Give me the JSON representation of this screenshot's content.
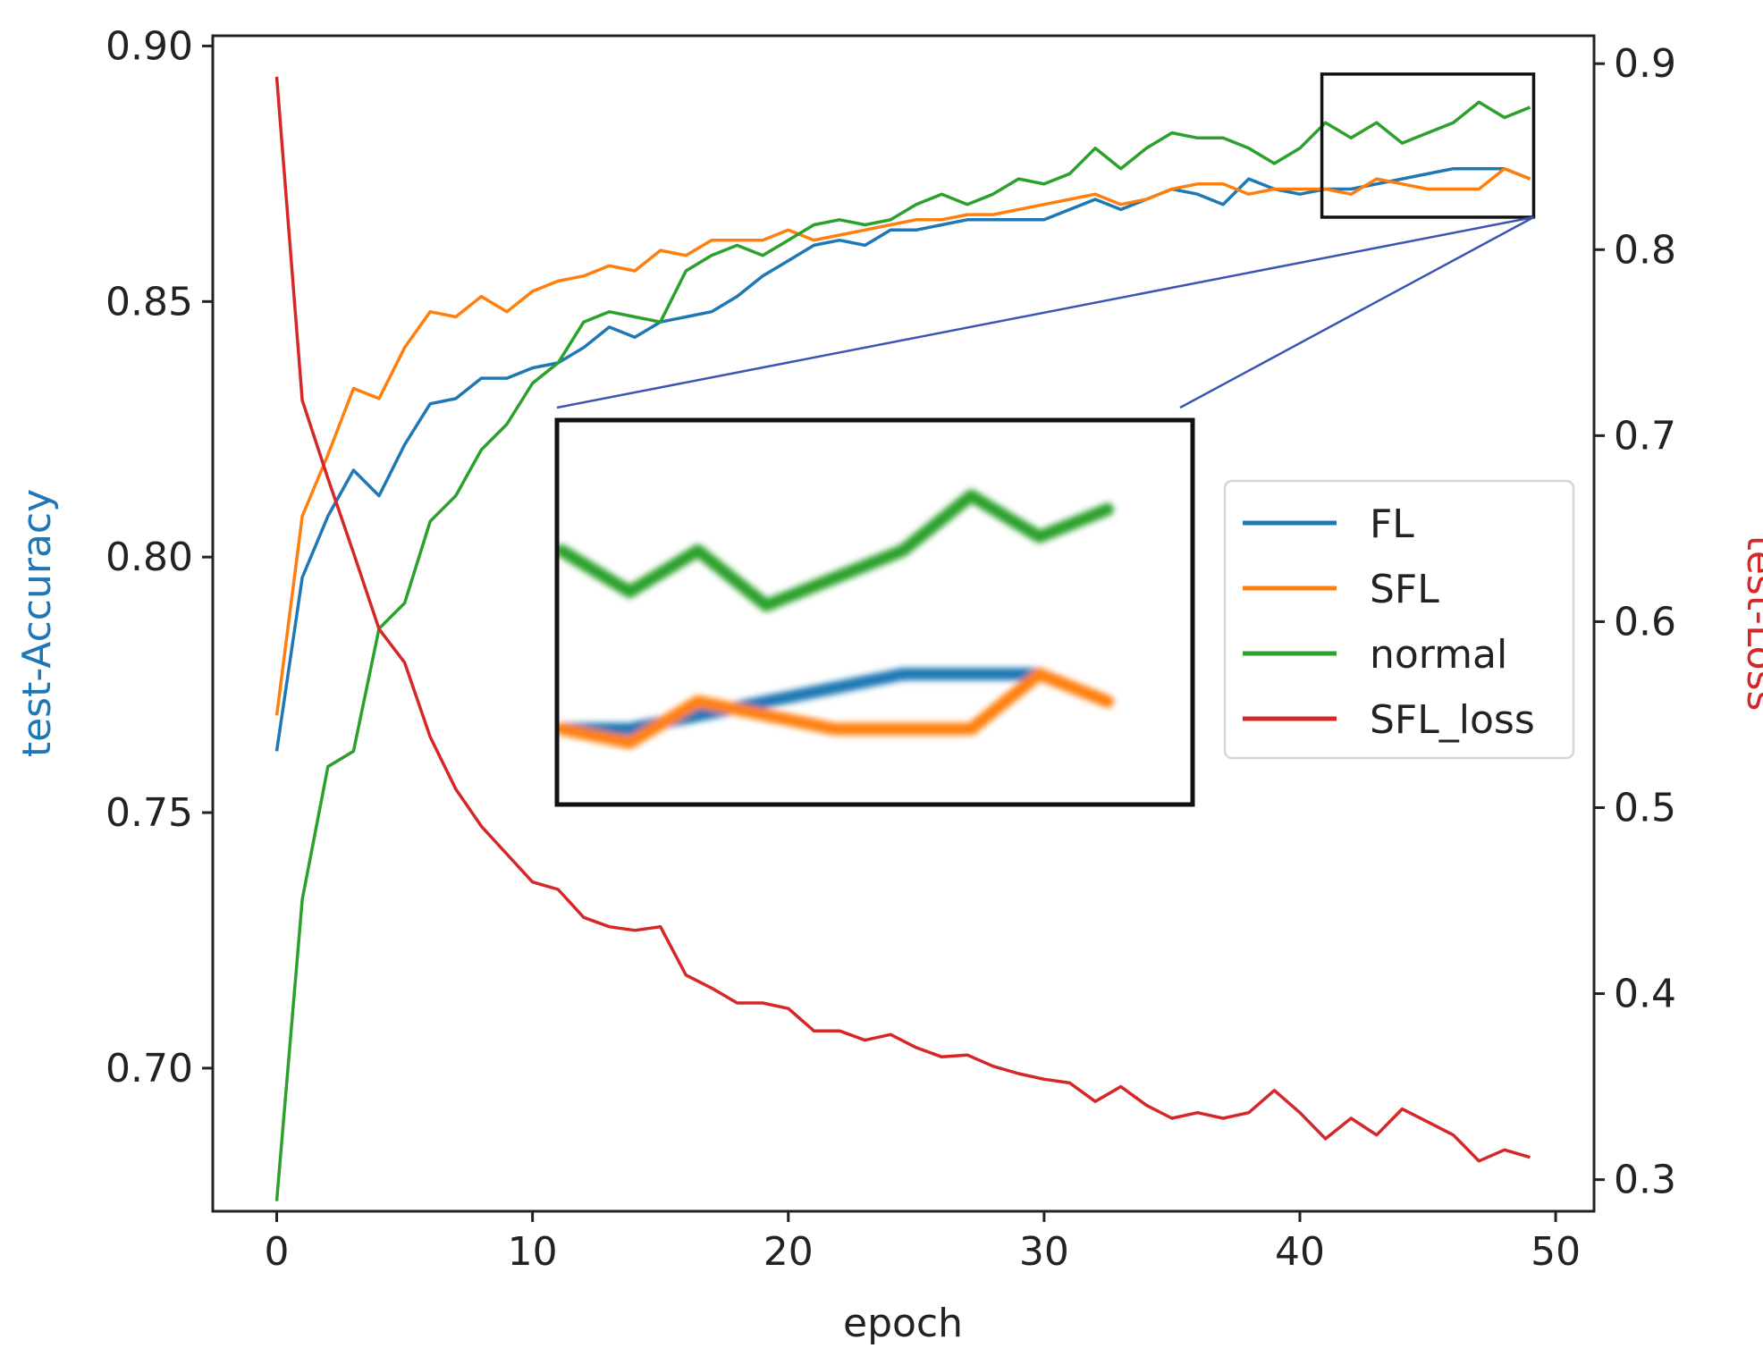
{
  "chart_data": {
    "type": "line",
    "xlabel": "epoch",
    "ylabel_left": "test-Accuracy",
    "ylabel_right": "test-Loss",
    "xlim": [
      -2.5,
      51.5
    ],
    "ylim_left": [
      0.672,
      0.902
    ],
    "ylim_right": [
      0.283,
      0.915
    ],
    "x_ticks": [
      "0",
      "10",
      "20",
      "30",
      "40",
      "50"
    ],
    "y_ticks_left": [
      "0.70",
      "0.75",
      "0.80",
      "0.85",
      "0.90"
    ],
    "y_ticks_right": [
      "0.3",
      "0.4",
      "0.5",
      "0.6",
      "0.7",
      "0.8",
      "0.9"
    ],
    "legend_placement": "center-right",
    "colors": {
      "FL": "#1f77b4",
      "SFL": "#ff7f0e",
      "normal": "#2ca02c",
      "SFL_loss": "#d62728",
      "left_axis_label": "#1f77b4",
      "right_axis_label": "#d62728",
      "zoom_connector": "#3a55b4"
    },
    "x": [
      0,
      1,
      2,
      3,
      4,
      5,
      6,
      7,
      8,
      9,
      10,
      11,
      12,
      13,
      14,
      15,
      16,
      17,
      18,
      19,
      20,
      21,
      22,
      23,
      24,
      25,
      26,
      27,
      28,
      29,
      30,
      31,
      32,
      33,
      34,
      35,
      36,
      37,
      38,
      39,
      40,
      41,
      42,
      43,
      44,
      45,
      46,
      47,
      48,
      49
    ],
    "series": [
      {
        "name": "FL",
        "axis": "left",
        "values": [
          0.762,
          0.796,
          0.808,
          0.817,
          0.812,
          0.822,
          0.83,
          0.831,
          0.835,
          0.835,
          0.837,
          0.838,
          0.841,
          0.845,
          0.843,
          0.846,
          0.847,
          0.848,
          0.851,
          0.855,
          0.858,
          0.861,
          0.862,
          0.861,
          0.864,
          0.864,
          0.865,
          0.866,
          0.866,
          0.866,
          0.866,
          0.868,
          0.87,
          0.868,
          0.87,
          0.872,
          0.871,
          0.869,
          0.874,
          0.872,
          0.871,
          0.872,
          0.872,
          0.873,
          0.874,
          0.875,
          0.876,
          0.876,
          0.876,
          0.874
        ]
      },
      {
        "name": "SFL",
        "axis": "left",
        "values": [
          0.769,
          0.808,
          0.82,
          0.833,
          0.831,
          0.841,
          0.848,
          0.847,
          0.851,
          0.848,
          0.852,
          0.854,
          0.855,
          0.857,
          0.856,
          0.86,
          0.859,
          0.862,
          0.862,
          0.862,
          0.864,
          0.862,
          0.863,
          0.864,
          0.865,
          0.866,
          0.866,
          0.867,
          0.867,
          0.868,
          0.869,
          0.87,
          0.871,
          0.869,
          0.87,
          0.872,
          0.873,
          0.873,
          0.871,
          0.872,
          0.872,
          0.872,
          0.871,
          0.874,
          0.873,
          0.872,
          0.872,
          0.872,
          0.876,
          0.874
        ]
      },
      {
        "name": "normal",
        "axis": "left",
        "values": [
          0.674,
          0.733,
          0.759,
          0.762,
          0.786,
          0.791,
          0.807,
          0.812,
          0.821,
          0.826,
          0.834,
          0.838,
          0.846,
          0.848,
          0.847,
          0.846,
          0.856,
          0.859,
          0.861,
          0.859,
          0.862,
          0.865,
          0.866,
          0.865,
          0.866,
          0.869,
          0.871,
          0.869,
          0.871,
          0.874,
          0.873,
          0.875,
          0.88,
          0.876,
          0.88,
          0.883,
          0.882,
          0.882,
          0.88,
          0.877,
          0.88,
          0.885,
          0.882,
          0.885,
          0.881,
          0.883,
          0.885,
          0.889,
          0.886,
          0.888
        ]
      },
      {
        "name": "SFL_loss",
        "axis": "right",
        "values": [
          0.893,
          0.719,
          0.677,
          0.637,
          0.596,
          0.578,
          0.538,
          0.51,
          0.49,
          0.475,
          0.46,
          0.456,
          0.441,
          0.436,
          0.434,
          0.436,
          0.41,
          0.403,
          0.395,
          0.395,
          0.392,
          0.38,
          0.38,
          0.375,
          0.378,
          0.371,
          0.366,
          0.367,
          0.361,
          0.357,
          0.354,
          0.352,
          0.342,
          0.35,
          0.34,
          0.333,
          0.336,
          0.333,
          0.336,
          0.348,
          0.336,
          0.322,
          0.333,
          0.324,
          0.338,
          0.331,
          0.324,
          0.31,
          0.316,
          0.312
        ]
      }
    ],
    "inset": {
      "description_none": "",
      "x_range": [
        41,
        49
      ],
      "y_range": [
        0.8665,
        0.8945
      ],
      "series": [
        "FL",
        "SFL",
        "normal"
      ]
    }
  }
}
